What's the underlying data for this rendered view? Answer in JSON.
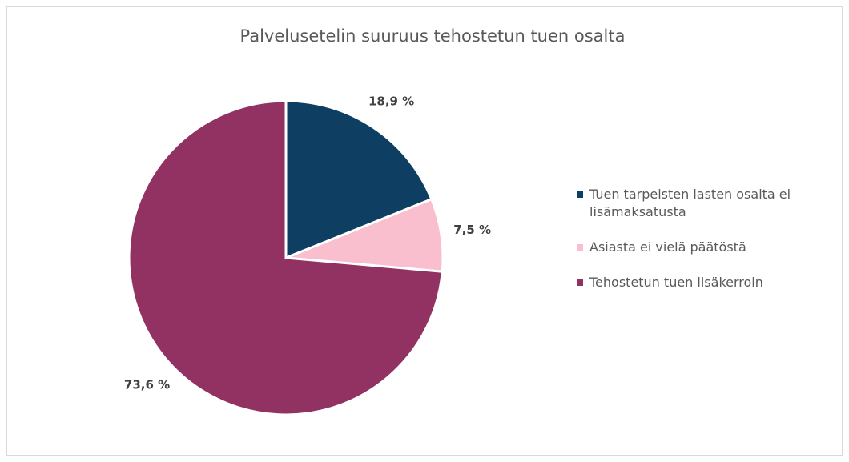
{
  "chart_data": {
    "type": "pie",
    "title": "Palvelusetelin suuruus tehostetun tuen osalta",
    "categories": [
      "Tuen tarpeisten lasten osalta ei lisämaksatusta",
      "Asiasta ei vielä päätöstä",
      "Tehostetun tuen lisäkerroin"
    ],
    "values": [
      18.9,
      7.5,
      73.6
    ],
    "value_labels": [
      "18,9 %",
      "7,5 %",
      "73,6 %"
    ],
    "colors": [
      "#0e3e62",
      "#f9bfcf",
      "#913263"
    ],
    "legend": "right"
  }
}
